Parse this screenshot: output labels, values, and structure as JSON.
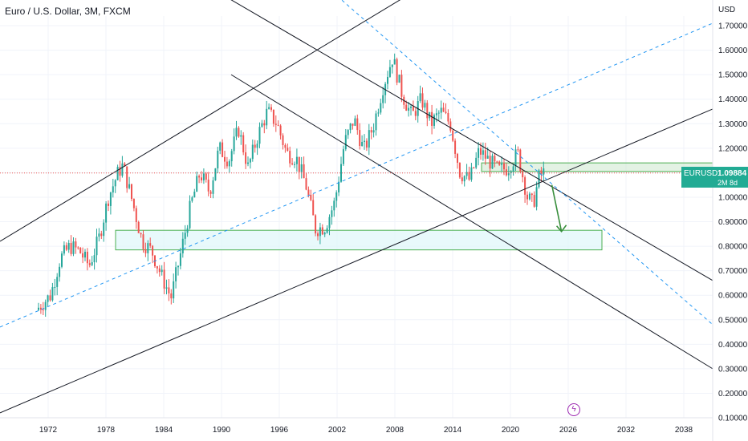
{
  "header": {
    "title": "Euro / U.S. Dollar, 3M, FXCM"
  },
  "price_scale": {
    "currency": "USD"
  },
  "last_price": {
    "symbol": "EURUSD",
    "value": "1.09884",
    "countdown": "2M 8d",
    "color": "#22ab94"
  },
  "events": {
    "icon": "lightning-bolt-icon",
    "glyph": "ϟ"
  },
  "colors": {
    "up": "#26a69a",
    "down": "#ef5350",
    "channel_line": "#131722",
    "median_line": "#2196f3",
    "zone_fill": "#e0f7fa",
    "zone_border": "#4caf50",
    "arrow": "#388e3c"
  },
  "chart_data": {
    "type": "candlestick",
    "symbol": "EURUSD",
    "timeframe": "3M",
    "x_axis": {
      "ticks": [
        "1972",
        "1978",
        "1984",
        "1990",
        "1996",
        "2002",
        "2008",
        "2014",
        "2020",
        "2026",
        "2032",
        "2038"
      ],
      "range": [
        1967,
        2041
      ]
    },
    "y_axis": {
      "ticks": [
        "0.10000",
        "0.20000",
        "0.30000",
        "0.40000",
        "0.50000",
        "0.60000",
        "0.70000",
        "0.80000",
        "0.90000",
        "1.00000",
        "1.10000",
        "1.20000",
        "1.30000",
        "1.40000",
        "1.50000",
        "1.60000",
        "1.70000"
      ],
      "range": [
        0.1,
        1.7
      ],
      "scale": "linear"
    },
    "grid": true,
    "last_close": 1.09884,
    "price_path": [
      [
        1971.0,
        0.54
      ],
      [
        1972.5,
        0.6
      ],
      [
        1973.5,
        0.75
      ],
      [
        1974.5,
        0.8
      ],
      [
        1975.5,
        0.78
      ],
      [
        1976.5,
        0.72
      ],
      [
        1977.5,
        0.83
      ],
      [
        1978.5,
        1.0
      ],
      [
        1979.5,
        1.1
      ],
      [
        1980.0,
        1.13
      ],
      [
        1981.0,
        0.98
      ],
      [
        1982.0,
        0.82
      ],
      [
        1983.0,
        0.78
      ],
      [
        1984.0,
        0.68
      ],
      [
        1985.0,
        0.59
      ],
      [
        1986.0,
        0.77
      ],
      [
        1987.0,
        0.96
      ],
      [
        1988.0,
        1.1
      ],
      [
        1989.0,
        1.02
      ],
      [
        1990.0,
        1.2
      ],
      [
        1991.0,
        1.15
      ],
      [
        1992.0,
        1.28
      ],
      [
        1993.0,
        1.12
      ],
      [
        1994.0,
        1.25
      ],
      [
        1995.0,
        1.35
      ],
      [
        1996.0,
        1.3
      ],
      [
        1997.0,
        1.18
      ],
      [
        1998.0,
        1.16
      ],
      [
        1999.0,
        1.05
      ],
      [
        2000.0,
        0.87
      ],
      [
        2001.0,
        0.88
      ],
      [
        2002.0,
        0.98
      ],
      [
        2003.0,
        1.22
      ],
      [
        2004.0,
        1.32
      ],
      [
        2005.0,
        1.19
      ],
      [
        2006.0,
        1.29
      ],
      [
        2007.0,
        1.45
      ],
      [
        2008.0,
        1.57
      ],
      [
        2009.0,
        1.42
      ],
      [
        2010.0,
        1.33
      ],
      [
        2011.0,
        1.4
      ],
      [
        2012.0,
        1.3
      ],
      [
        2013.0,
        1.35
      ],
      [
        2014.0,
        1.3
      ],
      [
        2015.0,
        1.1
      ],
      [
        2016.0,
        1.07
      ],
      [
        2017.0,
        1.19
      ],
      [
        2018.0,
        1.15
      ],
      [
        2019.0,
        1.11
      ],
      [
        2020.0,
        1.12
      ],
      [
        2021.0,
        1.18
      ],
      [
        2022.0,
        1.0
      ],
      [
        2022.6,
        0.97
      ],
      [
        2023.2,
        1.08
      ],
      [
        2023.6,
        1.09884
      ]
    ],
    "drawings": {
      "ascending_channel": {
        "upper": [
          [
            1967,
            0.82
          ],
          [
            2010,
            1.84
          ]
        ],
        "median": [
          [
            1967,
            0.47
          ],
          [
            2041,
            1.71
          ]
        ],
        "lower": [
          [
            1967,
            0.12
          ],
          [
            2041,
            1.36
          ]
        ]
      },
      "descending_channel": {
        "upper": [
          [
            1986,
            1.92
          ],
          [
            2041,
            0.66
          ]
        ],
        "median": [
          [
            2000,
            1.89
          ],
          [
            2041,
            0.48
          ]
        ],
        "lower": [
          [
            1991,
            1.5
          ],
          [
            2041,
            0.3
          ]
        ]
      },
      "support_zone": {
        "x": [
          1979,
          2029.5
        ],
        "y": [
          0.785,
          0.865
        ]
      },
      "resistance_zone": {
        "x": [
          2017,
          2041
        ],
        "y": [
          1.105,
          1.14
        ]
      },
      "arrow": {
        "from": [
          2024.3,
          1.05
        ],
        "to": [
          2025.3,
          0.86
        ]
      },
      "price_line": 1.09884
    }
  }
}
